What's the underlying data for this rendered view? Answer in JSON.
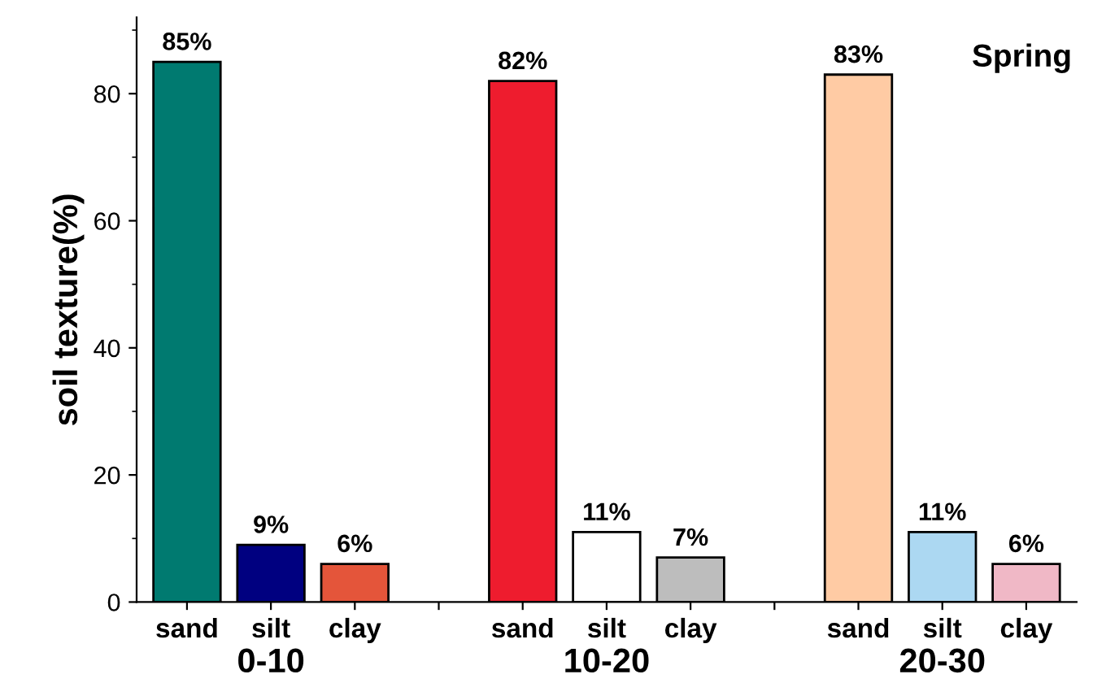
{
  "chart_data": {
    "type": "bar",
    "title": "Spring",
    "ylabel": "soil texture(%)",
    "categories": [
      "sand",
      "silt",
      "clay",
      null,
      "sand",
      "silt",
      "clay",
      null,
      "sand",
      "silt",
      "clay"
    ],
    "values": [
      85,
      9,
      6,
      null,
      82,
      11,
      7,
      null,
      83,
      11,
      6
    ],
    "value_labels": [
      "85%",
      "9%",
      "6%",
      null,
      "82%",
      "11%",
      "7%",
      null,
      "83%",
      "11%",
      "6%"
    ],
    "colors": [
      "#007a70",
      "#000080",
      "#e4553a",
      "#ffffff",
      "#ee1c2e",
      "#ffffff",
      "#bdbdbd",
      "#ffffff",
      "#ffcba4",
      "#acd8f2",
      "#f0b8c6"
    ],
    "annotations": [
      "0-10",
      "10-20",
      "20-30"
    ],
    "ylim": [
      0,
      92
    ],
    "yticks": [
      0,
      20,
      40,
      60,
      80
    ],
    "grid": false
  }
}
